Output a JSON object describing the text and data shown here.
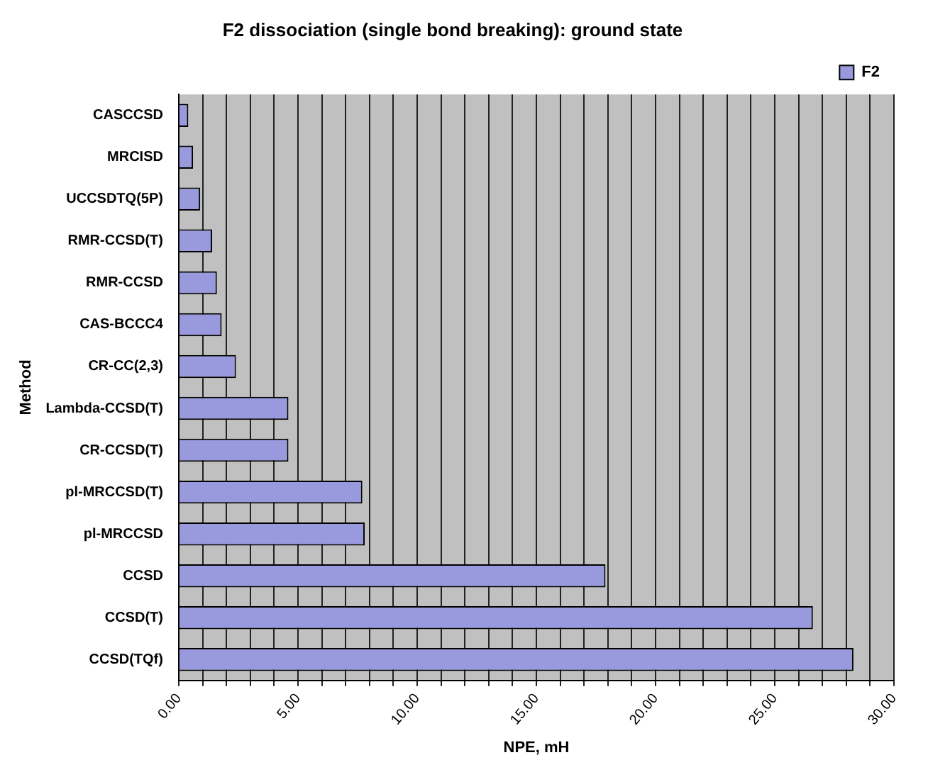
{
  "chart_data": {
    "type": "bar",
    "orientation": "horizontal",
    "title": "F2 dissociation (single bond breaking): ground state",
    "xlabel": "NPE, mH",
    "ylabel": "Method",
    "categories": [
      "CASCCSD",
      "MRCISD",
      "UCCSDTQ(5P)",
      "RMR-CCSD(T)",
      "RMR-CCSD",
      "CAS-BCCC4",
      "CR-CC(2,3)",
      "Lambda-CCSD(T)",
      "CR-CCSD(T)",
      "pl-MRCCSD(T)",
      "pl-MRCCSD",
      "CCSD",
      "CCSD(T)",
      "CCSD(TQf)"
    ],
    "series": [
      {
        "name": "F2",
        "color": "#9999dd",
        "values": [
          0.4,
          0.6,
          0.9,
          1.4,
          1.6,
          1.8,
          2.4,
          4.6,
          4.6,
          7.7,
          7.8,
          17.9,
          26.6,
          28.3
        ]
      }
    ],
    "xlim": [
      0,
      30
    ],
    "xticks": [
      {
        "value": 0,
        "label": "0.00"
      },
      {
        "value": 1,
        "label": null
      },
      {
        "value": 2,
        "label": null
      },
      {
        "value": 3,
        "label": null
      },
      {
        "value": 4,
        "label": null
      },
      {
        "value": 5,
        "label": "5.00"
      },
      {
        "value": 6,
        "label": null
      },
      {
        "value": 7,
        "label": null
      },
      {
        "value": 8,
        "label": null
      },
      {
        "value": 9,
        "label": null
      },
      {
        "value": 10,
        "label": "10.00"
      },
      {
        "value": 11,
        "label": null
      },
      {
        "value": 12,
        "label": null
      },
      {
        "value": 13,
        "label": null
      },
      {
        "value": 14,
        "label": null
      },
      {
        "value": 15,
        "label": "15.00"
      },
      {
        "value": 16,
        "label": null
      },
      {
        "value": 17,
        "label": null
      },
      {
        "value": 18,
        "label": null
      },
      {
        "value": 19,
        "label": null
      },
      {
        "value": 20,
        "label": "20.00"
      },
      {
        "value": 21,
        "label": null
      },
      {
        "value": 22,
        "label": null
      },
      {
        "value": 23,
        "label": null
      },
      {
        "value": 24,
        "label": null
      },
      {
        "value": 25,
        "label": "25.00"
      },
      {
        "value": 26,
        "label": null
      },
      {
        "value": 27,
        "label": null
      },
      {
        "value": 28,
        "label": null
      },
      {
        "value": 29,
        "label": null
      },
      {
        "value": 30,
        "label": "30.00"
      }
    ],
    "grid": "x",
    "legend": "top right"
  }
}
